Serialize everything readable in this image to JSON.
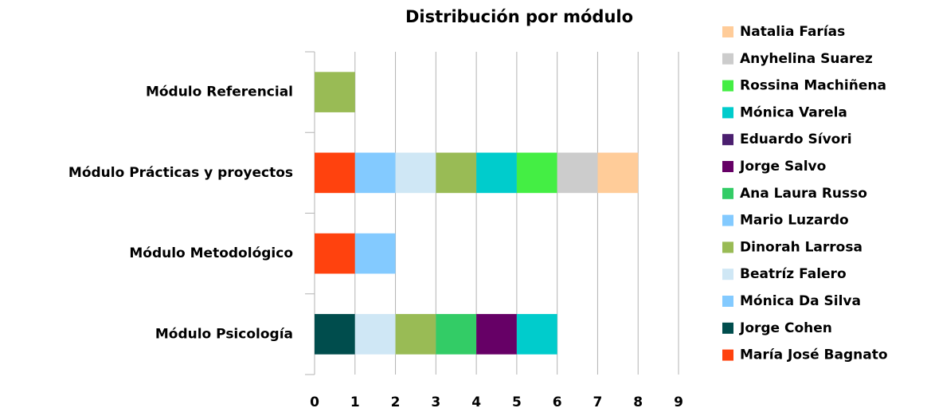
{
  "chart_data": {
    "type": "stacked-barh",
    "title": "Distribución por módulo",
    "categories": [
      "Módulo Psicología",
      "Módulo Metodológico",
      "Módulo Prácticas y proyectos",
      "Módulo Referencial"
    ],
    "series": [
      {
        "name": "María José Bagnato",
        "color": "#ff420e",
        "values": [
          0,
          1,
          1,
          0
        ]
      },
      {
        "name": "Jorge Cohen",
        "color": "#004d4d",
        "values": [
          1,
          0,
          0,
          0
        ]
      },
      {
        "name": "Mónica Da Silva",
        "color": "#83caff",
        "values": [
          0,
          1,
          1,
          0
        ]
      },
      {
        "name": "Beatríz Falero",
        "color": "#cfe7f5",
        "values": [
          1,
          0,
          1,
          0
        ]
      },
      {
        "name": "Dinorah Larrosa",
        "color": "#99bb55",
        "values": [
          1,
          0,
          1,
          1
        ]
      },
      {
        "name": "Mario Luzardo",
        "color": "#83caff",
        "values": [
          0,
          0,
          0,
          0
        ]
      },
      {
        "name": "Ana Laura Russo",
        "color": "#33cc66",
        "values": [
          1,
          0,
          0,
          0
        ]
      },
      {
        "name": "Jorge Salvo",
        "color": "#660066",
        "values": [
          1,
          0,
          0,
          0
        ]
      },
      {
        "name": "Eduardo Sívori",
        "color": "#4b1f6f",
        "values": [
          0,
          0,
          0,
          0
        ]
      },
      {
        "name": "Mónica Varela",
        "color": "#00cccc",
        "values": [
          1,
          0,
          1,
          0
        ]
      },
      {
        "name": "Rossina Machiñena",
        "color": "#44ee44",
        "values": [
          0,
          0,
          1,
          0
        ]
      },
      {
        "name": "Anyhelina Suarez",
        "color": "#cccccc",
        "values": [
          0,
          0,
          1,
          0
        ]
      },
      {
        "name": "Natalia Farías",
        "color": "#ffcc99",
        "values": [
          0,
          0,
          1,
          0
        ]
      }
    ],
    "xlim": [
      0,
      9
    ],
    "xticks": [
      0,
      1,
      2,
      3,
      4,
      5,
      6,
      7,
      8,
      9
    ],
    "grid": true
  }
}
